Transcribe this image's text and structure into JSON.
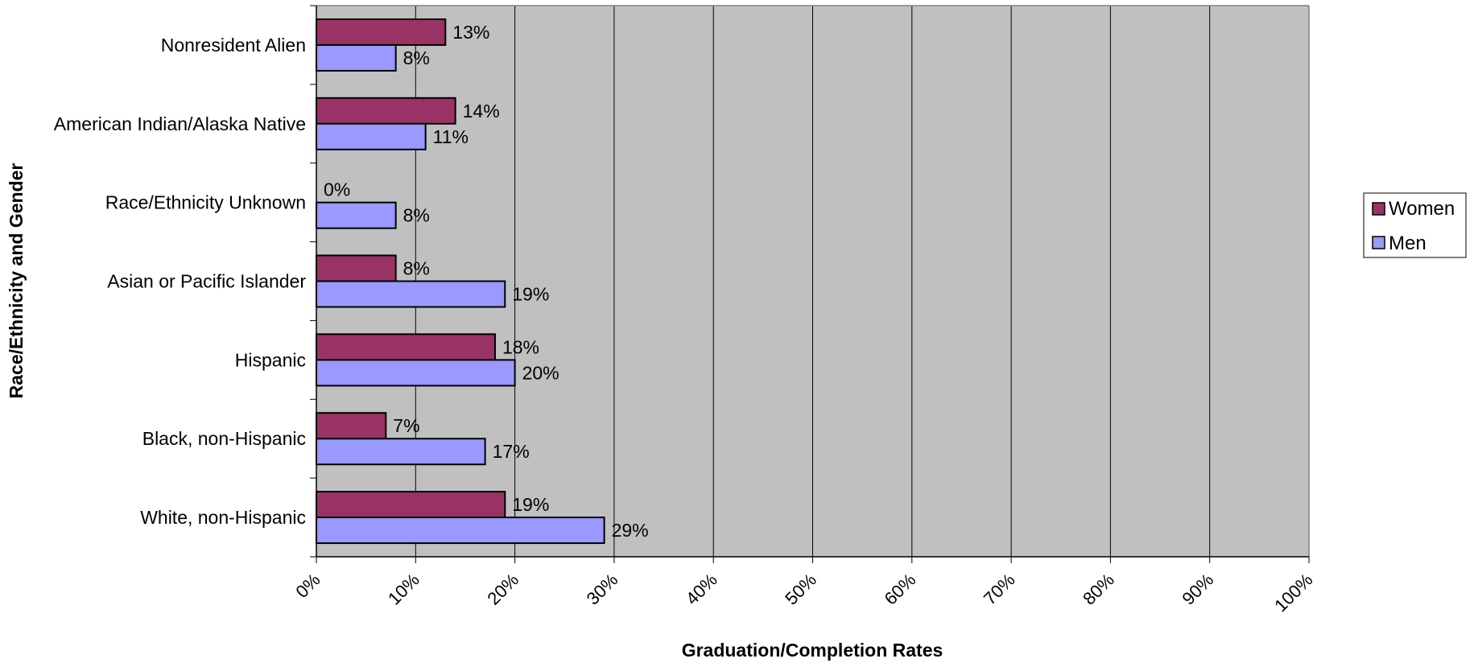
{
  "chart_data": {
    "type": "bar",
    "orientation": "horizontal",
    "categories": [
      "Nonresident Alien",
      "American Indian/Alaska Native",
      "Race/Ethnicity Unknown",
      "Asian or Pacific Islander",
      "Hispanic",
      "Black, non-Hispanic",
      "White, non-Hispanic"
    ],
    "series": [
      {
        "name": "Women",
        "values": [
          13,
          14,
          0,
          8,
          18,
          7,
          19
        ],
        "color": "#993366"
      },
      {
        "name": "Men",
        "values": [
          8,
          11,
          8,
          19,
          20,
          17,
          29
        ],
        "color": "#9999ff"
      }
    ],
    "data_labels": {
      "Women": [
        "13%",
        "14%",
        "0%",
        "8%",
        "18%",
        "7%",
        "19%"
      ],
      "Men": [
        "8%",
        "11%",
        "8%",
        "19%",
        "20%",
        "17%",
        "29%"
      ]
    },
    "xlim": [
      0,
      100
    ],
    "x_ticks": [
      "0%",
      "10%",
      "20%",
      "30%",
      "40%",
      "50%",
      "60%",
      "70%",
      "80%",
      "90%",
      "100%"
    ],
    "xlabel": "Graduation/Completion Rates",
    "ylabel": "Race/Ethnicity and Gender",
    "grid": "vertical",
    "plot_background": "#c0c0c0",
    "legend_position": "right",
    "title": ""
  }
}
